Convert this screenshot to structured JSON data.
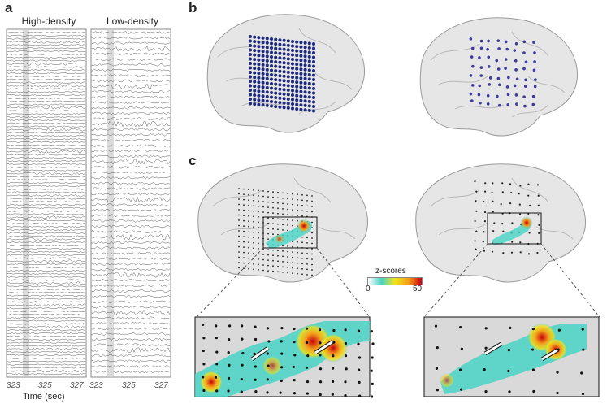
{
  "panels": {
    "a": {
      "letter": "a",
      "left_title": "High-density",
      "right_title": "Low-density",
      "left_ticks": [
        "323",
        "325",
        "327"
      ],
      "right_ticks": [
        "323",
        "325",
        "327"
      ],
      "xlabel": "Time (sec)"
    },
    "b": {
      "letter": "b"
    },
    "c": {
      "letter": "c",
      "colorbar": {
        "title": "z-scores",
        "min_label": "0",
        "max_label": "50"
      }
    }
  },
  "colors": {
    "grid_dot": "#1f2a7a",
    "heat_low": "#49d3c6",
    "heat_high": "#c8000f",
    "brain": "#e6e6e6"
  }
}
